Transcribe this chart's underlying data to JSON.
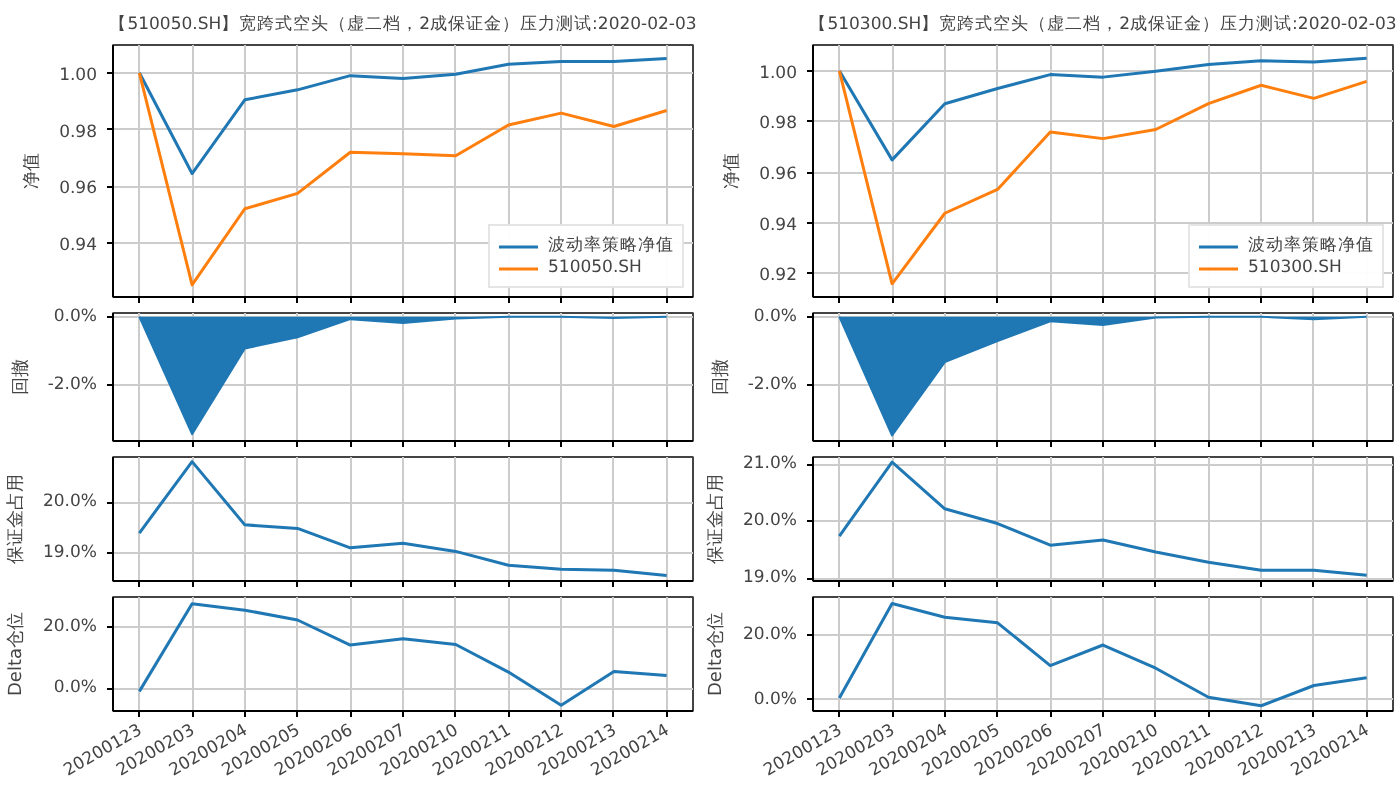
{
  "chart_data": [
    {
      "type": "line",
      "title": "【510050.SH】宽跨式空头（虚二档，2成保证金）压力测试:2020-02-03",
      "ylabel": "净值",
      "categories": [
        "20200123",
        "20200203",
        "20200204",
        "20200205",
        "20200206",
        "20200207",
        "20200210",
        "20200211",
        "20200212",
        "20200213",
        "20200214"
      ],
      "series": [
        {
          "name": "波动率策略净值",
          "color": "#1f77b4",
          "values": [
            1.0,
            0.9645,
            0.9905,
            0.994,
            0.999,
            0.998,
            0.9995,
            1.003,
            1.004,
            1.004,
            1.005
          ]
        },
        {
          "name": "510050.SH",
          "color": "#ff7f0e",
          "values": [
            1.0,
            0.9253,
            0.9521,
            0.9575,
            0.972,
            0.9715,
            0.9708,
            0.9816,
            0.9858,
            0.9811,
            0.9867
          ]
        }
      ],
      "ylim": [
        0.921,
        1.0098
      ],
      "yticks": [
        0.94,
        0.96,
        0.98,
        {
          "value": 1.0,
          "label": "1.00"
        }
      ],
      "grid": true,
      "legend": "bottom right",
      "tick_labels": "y"
    },
    {
      "type": "line",
      "title": "【510300.SH】宽跨式空头（虚二档，2成保证金）压力测试:2020-02-03",
      "ylabel": "净值",
      "categories": [
        "20200123",
        "20200203",
        "20200204",
        "20200205",
        "20200206",
        "20200207",
        "20200210",
        "20200211",
        "20200212",
        "20200213",
        "20200214"
      ],
      "series": [
        {
          "name": "波动率策略净值",
          "color": "#1f77b4",
          "values": [
            1.0,
            0.9648,
            0.987,
            0.993,
            0.9985,
            0.9975,
            0.9998,
            1.0025,
            1.004,
            1.0035,
            1.005
          ]
        },
        {
          "name": "510300.SH",
          "color": "#ff7f0e",
          "values": [
            1.0,
            0.9158,
            0.9437,
            0.9531,
            0.9758,
            0.9732,
            0.9768,
            0.987,
            0.9943,
            0.9891,
            0.9958
          ]
        }
      ],
      "ylim": [
        0.9106,
        1.0102
      ],
      "yticks": [
        0.92,
        0.94,
        0.96,
        0.98,
        {
          "value": 1.0,
          "label": "1.00"
        }
      ],
      "grid": true,
      "legend": "bottom right",
      "tick_labels": "y"
    },
    {
      "type": "area",
      "ylabel": "回撤",
      "categories": [
        "20200123",
        "20200203",
        "20200204",
        "20200205",
        "20200206",
        "20200207",
        "20200210",
        "20200211",
        "20200212",
        "20200213",
        "20200214"
      ],
      "series": [
        {
          "color": "#1f77b4",
          "values": [
            0,
            -3.44,
            -0.93,
            -0.6,
            -0.07,
            -0.18,
            -0.05,
            0,
            0,
            -0.04,
            0
          ]
        }
      ],
      "ylim": [
        -3.64,
        0.11
      ],
      "yticks": [
        {
          "value": -2,
          "label": "-2.0%"
        },
        {
          "value": 0,
          "label": "0.0%"
        }
      ],
      "grid": true,
      "tick_labels": "y"
    },
    {
      "type": "area",
      "ylabel": "回撤",
      "categories": [
        "20200123",
        "20200203",
        "20200204",
        "20200205",
        "20200206",
        "20200207",
        "20200210",
        "20200211",
        "20200212",
        "20200213",
        "20200214"
      ],
      "series": [
        {
          "color": "#1f77b4",
          "values": [
            0,
            -3.48,
            -1.33,
            -0.71,
            -0.13,
            -0.24,
            -0.02,
            0,
            0,
            -0.07,
            0
          ]
        }
      ],
      "ylim": [
        -3.64,
        0.11
      ],
      "yticks": [
        {
          "value": -2,
          "label": "-2.0%"
        },
        {
          "value": 0,
          "label": "0.0%"
        }
      ],
      "grid": true,
      "tick_labels": "y"
    },
    {
      "type": "line",
      "ylabel": "保证金占用",
      "categories": [
        "20200123",
        "20200203",
        "20200204",
        "20200205",
        "20200206",
        "20200207",
        "20200210",
        "20200211",
        "20200212",
        "20200213",
        "20200214"
      ],
      "series": [
        {
          "color": "#1f77b4",
          "values": [
            19.4,
            20.8,
            19.56,
            19.49,
            19.11,
            19.2,
            19.04,
            18.77,
            18.69,
            18.67,
            18.57
          ]
        }
      ],
      "ylim": [
        18.46,
        20.89
      ],
      "yticks": [
        {
          "value": 19,
          "label": "19.0%"
        },
        {
          "value": 20,
          "label": "20.0%"
        }
      ],
      "grid": true,
      "tick_labels": "y"
    },
    {
      "type": "line",
      "ylabel": "保证金占用",
      "categories": [
        "20200123",
        "20200203",
        "20200204",
        "20200205",
        "20200206",
        "20200207",
        "20200210",
        "20200211",
        "20200212",
        "20200213",
        "20200214"
      ],
      "series": [
        {
          "color": "#1f77b4",
          "values": [
            19.74,
            21.04,
            20.22,
            19.96,
            19.58,
            19.67,
            19.46,
            19.28,
            19.14,
            19.14,
            19.05
          ]
        }
      ],
      "ylim": [
        18.95,
        21.13
      ],
      "yticks": [
        {
          "value": 19,
          "label": "19.0%"
        },
        {
          "value": 20,
          "label": "20.0%"
        },
        {
          "value": 21,
          "label": "21.0%"
        }
      ],
      "grid": true,
      "tick_labels": "y"
    },
    {
      "type": "line",
      "ylabel": "Delta仓位",
      "categories": [
        "20200123",
        "20200203",
        "20200204",
        "20200205",
        "20200206",
        "20200207",
        "20200210",
        "20200211",
        "20200212",
        "20200213",
        "20200214"
      ],
      "series": [
        {
          "color": "#1f77b4",
          "values": [
            -1.1,
            27.5,
            25.4,
            22.2,
            14.0,
            16.1,
            14.2,
            5.2,
            -5.6,
            5.4,
            4.1
          ]
        }
      ],
      "ylim": [
        -7.5,
        29.7
      ],
      "yticks": [
        {
          "value": 0,
          "label": "0.0%"
        },
        {
          "value": 20,
          "label": "20.0%"
        }
      ],
      "grid": true
    },
    {
      "type": "line",
      "ylabel": "Delta仓位",
      "categories": [
        "20200123",
        "20200203",
        "20200204",
        "20200205",
        "20200206",
        "20200207",
        "20200210",
        "20200211",
        "20200212",
        "20200213",
        "20200214"
      ],
      "series": [
        {
          "color": "#1f77b4",
          "values": [
            0.6,
            29.5,
            25.3,
            23.6,
            10.5,
            16.8,
            9.7,
            0.8,
            -1.8,
            4.4,
            6.8
          ]
        }
      ],
      "ylim": [
        -3.4,
        31.5
      ],
      "yticks": [
        {
          "value": 0,
          "label": "0.0%"
        },
        {
          "value": 20,
          "label": "20.0%"
        }
      ],
      "grid": true
    }
  ]
}
